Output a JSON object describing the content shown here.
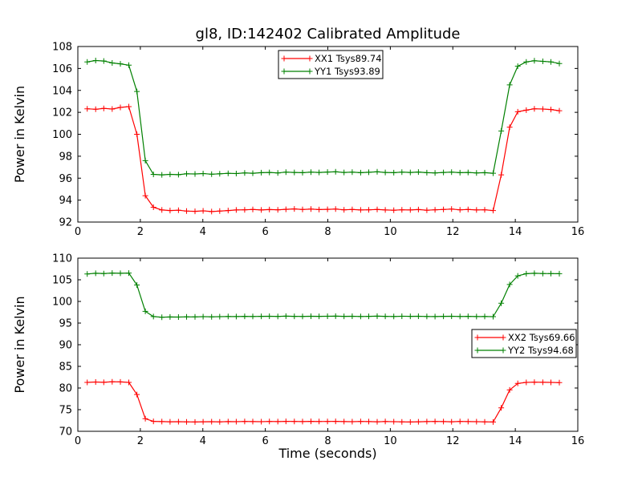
{
  "figure": {
    "background": "#ffffff",
    "axis_color": "#000000",
    "legend_background": "#ffffff"
  },
  "chart_data": [
    {
      "type": "line",
      "title": "gl8, ID:142402 Calibrated Amplitude",
      "xlabel": "",
      "ylabel": "Power in Kelvin",
      "xlim": [
        0,
        16
      ],
      "ylim": [
        92,
        108
      ],
      "xticks": [
        0,
        2,
        4,
        6,
        8,
        10,
        12,
        14,
        16
      ],
      "yticks": [
        92,
        94,
        96,
        98,
        100,
        102,
        104,
        106,
        108
      ],
      "grid": false,
      "legend": {
        "loc": "upper-center",
        "entries": [
          {
            "label": "XX1 Tsys89.74",
            "color": "#ff0000"
          },
          {
            "label": "YY1 Tsys93.89",
            "color": "#008000"
          }
        ]
      },
      "x": [
        0.3,
        0.57,
        0.83,
        1.1,
        1.36,
        1.63,
        1.89,
        2.16,
        2.42,
        2.69,
        2.95,
        3.22,
        3.48,
        3.75,
        4.01,
        4.28,
        4.54,
        4.81,
        5.07,
        5.34,
        5.6,
        5.87,
        6.13,
        6.4,
        6.66,
        6.93,
        7.19,
        7.46,
        7.72,
        7.99,
        8.25,
        8.52,
        8.78,
        9.05,
        9.31,
        9.58,
        9.84,
        10.11,
        10.37,
        10.64,
        10.9,
        11.17,
        11.43,
        11.7,
        11.96,
        12.23,
        12.49,
        12.76,
        13.02,
        13.29,
        13.55,
        13.82,
        14.08,
        14.35,
        14.61,
        14.88,
        15.14,
        15.41
      ],
      "series": [
        {
          "name": "XX1 Tsys89.74",
          "color": "#ff0000",
          "marker": "plus",
          "y": [
            102.32,
            102.28,
            102.36,
            102.3,
            102.45,
            102.52,
            100.0,
            94.4,
            93.35,
            93.1,
            93.05,
            93.08,
            93.0,
            92.98,
            93.02,
            92.96,
            93.0,
            93.05,
            93.1,
            93.12,
            93.15,
            93.1,
            93.14,
            93.12,
            93.16,
            93.2,
            93.15,
            93.18,
            93.14,
            93.16,
            93.18,
            93.12,
            93.15,
            93.1,
            93.12,
            93.15,
            93.1,
            93.08,
            93.12,
            93.1,
            93.14,
            93.08,
            93.12,
            93.15,
            93.18,
            93.12,
            93.15,
            93.1,
            93.12,
            93.05,
            96.3,
            100.65,
            102.05,
            102.2,
            102.32,
            102.3,
            102.26,
            102.15
          ]
        },
        {
          "name": "YY1 Tsys93.89",
          "color": "#008000",
          "marker": "plus",
          "y": [
            106.6,
            106.72,
            106.68,
            106.5,
            106.42,
            106.3,
            103.9,
            97.6,
            96.35,
            96.3,
            96.35,
            96.32,
            96.4,
            96.38,
            96.42,
            96.36,
            96.4,
            96.44,
            96.42,
            96.48,
            96.45,
            96.5,
            96.52,
            96.48,
            96.55,
            96.52,
            96.5,
            96.55,
            96.52,
            96.56,
            96.58,
            96.52,
            96.55,
            96.5,
            96.54,
            96.58,
            96.52,
            96.5,
            96.55,
            96.52,
            96.56,
            96.5,
            96.48,
            96.52,
            96.55,
            96.5,
            96.52,
            96.48,
            96.5,
            96.45,
            100.3,
            104.5,
            106.2,
            106.6,
            106.7,
            106.65,
            106.6,
            106.45
          ]
        }
      ]
    },
    {
      "type": "line",
      "title": "",
      "xlabel": "Time (seconds)",
      "ylabel": "Power in Kelvin",
      "xlim": [
        0,
        16
      ],
      "ylim": [
        70,
        110
      ],
      "xticks": [
        0,
        2,
        4,
        6,
        8,
        10,
        12,
        14,
        16
      ],
      "yticks": [
        70,
        75,
        80,
        85,
        90,
        95,
        100,
        105,
        110
      ],
      "grid": false,
      "legend": {
        "loc": "center-right",
        "entries": [
          {
            "label": "XX2 Tsys69.66",
            "color": "#ff0000"
          },
          {
            "label": "YY2 Tsys94.68",
            "color": "#008000"
          }
        ]
      },
      "x": [
        0.3,
        0.57,
        0.83,
        1.1,
        1.36,
        1.63,
        1.89,
        2.16,
        2.42,
        2.69,
        2.95,
        3.22,
        3.48,
        3.75,
        4.01,
        4.28,
        4.54,
        4.81,
        5.07,
        5.34,
        5.6,
        5.87,
        6.13,
        6.4,
        6.66,
        6.93,
        7.19,
        7.46,
        7.72,
        7.99,
        8.25,
        8.52,
        8.78,
        9.05,
        9.31,
        9.58,
        9.84,
        10.11,
        10.37,
        10.64,
        10.9,
        11.17,
        11.43,
        11.7,
        11.96,
        12.23,
        12.49,
        12.76,
        13.02,
        13.29,
        13.55,
        13.82,
        14.08,
        14.35,
        14.61,
        14.88,
        15.14,
        15.41
      ],
      "series": [
        {
          "name": "XX2 Tsys69.66",
          "color": "#ff0000",
          "marker": "plus",
          "y": [
            81.3,
            81.38,
            81.32,
            81.45,
            81.4,
            81.3,
            78.5,
            72.9,
            72.3,
            72.25,
            72.2,
            72.22,
            72.18,
            72.15,
            72.2,
            72.22,
            72.18,
            72.25,
            72.22,
            72.28,
            72.25,
            72.22,
            72.28,
            72.25,
            72.3,
            72.28,
            72.25,
            72.3,
            72.26,
            72.28,
            72.3,
            72.25,
            72.22,
            72.28,
            72.24,
            72.2,
            72.26,
            72.22,
            72.18,
            72.15,
            72.2,
            72.25,
            72.28,
            72.24,
            72.2,
            72.28,
            72.25,
            72.22,
            72.18,
            72.15,
            75.4,
            79.55,
            81.05,
            81.3,
            81.36,
            81.32,
            81.3,
            81.25
          ]
        },
        {
          "name": "YY2 Tsys94.68",
          "color": "#008000",
          "marker": "plus",
          "y": [
            106.35,
            106.5,
            106.45,
            106.55,
            106.5,
            106.55,
            103.8,
            97.7,
            96.5,
            96.35,
            96.4,
            96.38,
            96.45,
            96.42,
            96.48,
            96.44,
            96.48,
            96.52,
            96.5,
            96.55,
            96.52,
            96.55,
            96.58,
            96.54,
            96.6,
            96.56,
            96.54,
            96.58,
            96.55,
            96.58,
            96.6,
            96.55,
            96.58,
            96.52,
            96.56,
            96.6,
            96.55,
            96.52,
            96.58,
            96.55,
            96.58,
            96.52,
            96.5,
            96.55,
            96.58,
            96.52,
            96.55,
            96.5,
            96.52,
            96.48,
            99.6,
            103.9,
            105.9,
            106.4,
            106.5,
            106.45,
            106.42,
            106.4
          ]
        }
      ]
    }
  ]
}
